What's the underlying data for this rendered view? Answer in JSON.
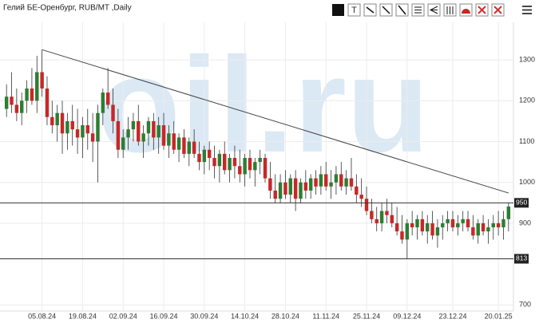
{
  "chart_data": {
    "type": "candlestick",
    "title": "Гелий БЕ-Оренбург, RUB/MT ,Daily",
    "watermark": "oil.ru",
    "up_color": "#2d7d32",
    "down_color": "#c62828",
    "categories": [
      null,
      null,
      null,
      null,
      null,
      null,
      null,
      "05.08.24",
      null,
      null,
      null,
      null,
      null,
      null,
      null,
      "19.08.24",
      null,
      null,
      null,
      null,
      null,
      null,
      null,
      "02.09.24",
      null,
      null,
      null,
      null,
      null,
      null,
      null,
      "16.09.24",
      null,
      null,
      null,
      null,
      null,
      null,
      null,
      "30.09.24",
      null,
      null,
      null,
      null,
      null,
      null,
      null,
      "14.10.24",
      null,
      null,
      null,
      null,
      null,
      null,
      null,
      "28.10.24",
      null,
      null,
      null,
      null,
      null,
      null,
      null,
      "11.11.24",
      null,
      null,
      null,
      null,
      null,
      null,
      null,
      "25.11.24",
      null,
      null,
      null,
      null,
      null,
      null,
      null,
      "09.12.24",
      null,
      null,
      null,
      null,
      null,
      null,
      null,
      null,
      "23.12.24",
      null,
      null,
      null,
      null,
      null,
      null,
      null,
      null,
      "20.01.25",
      null,
      null
    ],
    "ohlc": [
      [
        1180,
        1240,
        1160,
        1210
      ],
      [
        1210,
        1270,
        1170,
        1190
      ],
      [
        1190,
        1230,
        1150,
        1170
      ],
      [
        1170,
        1220,
        1140,
        1200
      ],
      [
        1200,
        1250,
        1170,
        1230
      ],
      [
        1230,
        1280,
        1190,
        1200
      ],
      [
        1200,
        1310,
        1170,
        1270
      ],
      [
        1270,
        1325,
        1210,
        1230
      ],
      [
        1230,
        1260,
        1140,
        1160
      ],
      [
        1160,
        1200,
        1120,
        1140
      ],
      [
        1140,
        1190,
        1100,
        1170
      ],
      [
        1170,
        1200,
        1070,
        1120
      ],
      [
        1120,
        1170,
        1080,
        1150
      ],
      [
        1150,
        1190,
        1090,
        1130
      ],
      [
        1130,
        1180,
        1070,
        1110
      ],
      [
        1110,
        1160,
        1060,
        1140
      ],
      [
        1140,
        1180,
        1080,
        1120
      ],
      [
        1120,
        1170,
        1050,
        1100
      ],
      [
        1100,
        1190,
        1000,
        1170
      ],
      [
        1170,
        1230,
        1140,
        1220
      ],
      [
        1220,
        1280,
        1180,
        1190
      ],
      [
        1190,
        1230,
        1120,
        1150
      ],
      [
        1150,
        1180,
        1060,
        1080
      ],
      [
        1080,
        1130,
        1060,
        1110
      ],
      [
        1110,
        1160,
        1080,
        1130
      ],
      [
        1130,
        1170,
        1100,
        1150
      ],
      [
        1150,
        1190,
        1090,
        1100
      ],
      [
        1100,
        1140,
        1060,
        1120
      ],
      [
        1120,
        1160,
        1090,
        1150
      ],
      [
        1150,
        1170,
        1080,
        1110
      ],
      [
        1110,
        1160,
        1070,
        1140
      ],
      [
        1140,
        1170,
        1080,
        1090
      ],
      [
        1090,
        1140,
        1060,
        1120
      ],
      [
        1120,
        1150,
        1070,
        1080
      ],
      [
        1080,
        1120,
        1050,
        1110
      ],
      [
        1110,
        1130,
        1060,
        1070
      ],
      [
        1070,
        1110,
        1040,
        1100
      ],
      [
        1100,
        1130,
        1060,
        1070
      ],
      [
        1070,
        1100,
        1030,
        1050
      ],
      [
        1050,
        1090,
        1020,
        1080
      ],
      [
        1080,
        1100,
        1030,
        1060
      ],
      [
        1060,
        1090,
        1010,
        1040
      ],
      [
        1040,
        1080,
        1000,
        1070
      ],
      [
        1070,
        1100,
        1020,
        1030
      ],
      [
        1030,
        1070,
        1000,
        1060
      ],
      [
        1060,
        1090,
        1010,
        1040
      ],
      [
        1040,
        1080,
        1000,
        1020
      ],
      [
        1020,
        1070,
        990,
        1060
      ],
      [
        1060,
        1080,
        1010,
        1030
      ],
      [
        1030,
        1060,
        990,
        1050
      ],
      [
        1050,
        1080,
        1020,
        1060
      ],
      [
        1060,
        1070,
        1000,
        1010
      ],
      [
        1010,
        1050,
        960,
        980
      ],
      [
        980,
        1020,
        950,
        960
      ],
      [
        960,
        1020,
        950,
        1000
      ],
      [
        1000,
        1030,
        960,
        970
      ],
      [
        970,
        1020,
        950,
        1010
      ],
      [
        1010,
        1030,
        930,
        960
      ],
      [
        960,
        1010,
        950,
        1000
      ],
      [
        1000,
        1030,
        960,
        980
      ],
      [
        980,
        1020,
        960,
        1010
      ],
      [
        1010,
        1030,
        970,
        990
      ],
      [
        990,
        1040,
        970,
        1020
      ],
      [
        1020,
        1050,
        980,
        990
      ],
      [
        990,
        1030,
        960,
        1000
      ],
      [
        1000,
        1040,
        970,
        1020
      ],
      [
        1020,
        1050,
        980,
        990
      ],
      [
        990,
        1030,
        970,
        1010
      ],
      [
        1010,
        1060,
        980,
        990
      ],
      [
        990,
        1020,
        950,
        970
      ],
      [
        970,
        1010,
        940,
        960
      ],
      [
        960,
        990,
        920,
        930
      ],
      [
        930,
        960,
        900,
        910
      ],
      [
        910,
        940,
        880,
        900
      ],
      [
        900,
        950,
        880,
        930
      ],
      [
        930,
        960,
        900,
        920
      ],
      [
        920,
        950,
        890,
        900
      ],
      [
        900,
        940,
        870,
        880
      ],
      [
        880,
        920,
        850,
        860
      ],
      [
        860,
        910,
        813,
        900
      ],
      [
        900,
        930,
        870,
        890
      ],
      [
        890,
        920,
        860,
        910
      ],
      [
        910,
        930,
        870,
        880
      ],
      [
        880,
        920,
        850,
        900
      ],
      [
        900,
        930,
        860,
        870
      ],
      [
        870,
        910,
        840,
        890
      ],
      [
        890,
        920,
        860,
        900
      ],
      [
        900,
        930,
        880,
        910
      ],
      [
        910,
        930,
        880,
        890
      ],
      [
        890,
        920,
        870,
        900
      ],
      [
        900,
        930,
        880,
        910
      ],
      [
        910,
        930,
        880,
        890
      ],
      [
        890,
        920,
        860,
        870
      ],
      [
        870,
        910,
        850,
        900
      ],
      [
        900,
        920,
        870,
        880
      ],
      [
        880,
        910,
        850,
        890
      ],
      [
        890,
        920,
        860,
        900
      ],
      [
        900,
        930,
        870,
        890
      ],
      [
        890,
        930,
        860,
        910
      ],
      [
        910,
        950,
        880,
        941
      ]
    ],
    "ylim": [
      685,
      1392
    ],
    "yticks": [
      700,
      900,
      1000,
      1100,
      1200,
      1300
    ],
    "hlines": [
      950,
      813
    ],
    "trendline": {
      "x": [
        7,
        99
      ],
      "y": [
        1325,
        974
      ]
    },
    "grid": true
  }
}
